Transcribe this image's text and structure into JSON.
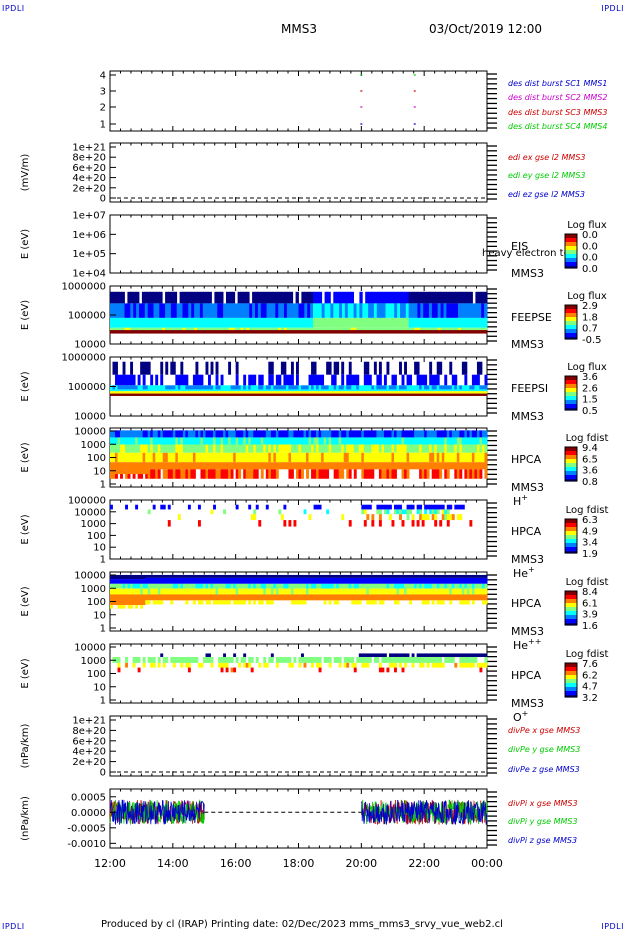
{
  "corners": {
    "tl": "IPDLI",
    "tr": "IPDLI",
    "bl": "IPDLI",
    "br": "IPDLI"
  },
  "header": {
    "spacecraft": "MMS3",
    "datetime": "03/Oct/2019 12:00"
  },
  "footer": {
    "text": "Produced by cl (IRAP)   Printing date: 02/Dec/2023   mms_mms3_srvy_vue_web2.cl"
  },
  "colors": {
    "red": "#cc0000",
    "green": "#00cc00",
    "blue": "#0000cc",
    "magenta": "#cc00cc",
    "spectrogram_scale": [
      "#000080",
      "#0000ff",
      "#0080ff",
      "#00ffff",
      "#80ff80",
      "#ffff00",
      "#ff8000",
      "#ff0000",
      "#800000"
    ]
  },
  "time_axis": {
    "tick_labels": [
      "12:00",
      "14:00",
      "16:00",
      "18:00",
      "20:00",
      "22:00",
      "00:00"
    ],
    "range_hours": [
      12,
      24
    ]
  },
  "chart_data": [
    {
      "type": "scatter",
      "ytick_labels": [
        "4",
        "3",
        "2",
        "1"
      ],
      "series": [
        {
          "name": "des dist burst SC1 MMS1",
          "color": "#0000cc",
          "y": 1,
          "x_hours": [
            20.0,
            21.7
          ]
        },
        {
          "name": "des dist burst SC2 MMS2",
          "color": "#cc00cc",
          "y": 2,
          "x_hours": [
            20.0,
            21.7
          ]
        },
        {
          "name": "des dist burst SC3 MMS3",
          "color": "#cc0000",
          "y": 3,
          "x_hours": [
            20.0,
            21.7
          ]
        },
        {
          "name": "des dist burst SC4 MMS4",
          "color": "#00cc00",
          "y": 4,
          "x_hours": [
            20.0,
            21.7
          ]
        }
      ]
    },
    {
      "type": "line",
      "ylabel": "(mV/m)",
      "ytick_labels": [
        "1e+21",
        "8e+20",
        "6e+20",
        "4e+20",
        "2e+20",
        "0"
      ],
      "series": [
        {
          "name": "edi ex gse l2 MMS3",
          "color": "#cc0000"
        },
        {
          "name": "edi ey gse l2 MMS3",
          "color": "#00cc00"
        },
        {
          "name": "edi ez gse l2 MMS3",
          "color": "#0000cc"
        }
      ]
    },
    {
      "type": "heatmap",
      "ylabel": "E (eV)",
      "ytick_labels": [
        "1e+07",
        "1e+06",
        "1e+05",
        "1e+04"
      ],
      "instrument": "EIS",
      "spacecraft": "MMS3",
      "overlay_text": "heavy electron to",
      "colorbar": {
        "label": "Log flux",
        "ticks": [
          "0.0",
          "0.0",
          "0.0",
          "0.0"
        ]
      }
    },
    {
      "type": "heatmap",
      "ylabel": "E (eV)",
      "ytick_labels": [
        "1000000",
        "100000",
        "10000"
      ],
      "instrument": "FEEPSE",
      "spacecraft": "MMS3",
      "colorbar": {
        "label": "Log flux",
        "ticks": [
          "2.9",
          "1.8",
          "0.7",
          "-0.5"
        ]
      }
    },
    {
      "type": "heatmap",
      "ylabel": "E (eV)",
      "ytick_labels": [
        "1000000",
        "100000",
        "10000"
      ],
      "instrument": "FEEPSI",
      "spacecraft": "MMS3",
      "colorbar": {
        "label": "Log flux",
        "ticks": [
          "3.6",
          "2.6",
          "1.5",
          "0.5"
        ]
      }
    },
    {
      "type": "heatmap",
      "ylabel": "E (eV)",
      "ytick_labels": [
        "10000",
        "1000",
        "100",
        "10",
        "1"
      ],
      "instrument": "HPCA",
      "spacecraft": "MMS3",
      "species": "H",
      "species_charge": "+",
      "colorbar": {
        "label": "Log fdist",
        "ticks": [
          "9.4",
          "6.5",
          "3.6",
          "0.8"
        ]
      }
    },
    {
      "type": "heatmap",
      "ylabel": "E (eV)",
      "ytick_labels": [
        "100000",
        "10000",
        "1000",
        "100",
        "10",
        "1"
      ],
      "instrument": "HPCA",
      "spacecraft": "MMS3",
      "species": "He",
      "species_charge": "+",
      "colorbar": {
        "label": "Log fdist",
        "ticks": [
          "6.3",
          "4.9",
          "3.4",
          "1.9"
        ]
      }
    },
    {
      "type": "heatmap",
      "ylabel": "E (eV)",
      "ytick_labels": [
        "10000",
        "1000",
        "100",
        "10",
        "1"
      ],
      "instrument": "HPCA",
      "spacecraft": "MMS3",
      "species": "He",
      "species_charge": "++",
      "colorbar": {
        "label": "Log fdist",
        "ticks": [
          "8.4",
          "6.1",
          "3.9",
          "1.6"
        ]
      }
    },
    {
      "type": "heatmap",
      "ylabel": "E (eV)",
      "ytick_labels": [
        "10000",
        "1000",
        "100",
        "10",
        "1"
      ],
      "instrument": "HPCA",
      "spacecraft": "MMS3",
      "species": "O",
      "species_charge": "+",
      "colorbar": {
        "label": "Log fdist",
        "ticks": [
          "7.6",
          "6.2",
          "4.7",
          "3.2"
        ]
      }
    },
    {
      "type": "line",
      "ylabel": "(nPa/km)",
      "ytick_labels": [
        "1e+21",
        "8e+20",
        "6e+20",
        "4e+20",
        "2e+20",
        "0"
      ],
      "series": [
        {
          "name": "divPe x gse MMS3",
          "color": "#cc0000"
        },
        {
          "name": "divPe y gse MMS3",
          "color": "#00cc00"
        },
        {
          "name": "divPe z gse MMS3",
          "color": "#0000cc"
        }
      ]
    },
    {
      "type": "line",
      "ylabel": "(nPa/km)",
      "ytick_labels": [
        "0.0005",
        "0.0000",
        "-0.0005",
        "-0.0010"
      ],
      "ylim": [
        -0.00115,
        0.00075
      ],
      "series": [
        {
          "name": "divPi x gse MMS3",
          "color": "#cc0000"
        },
        {
          "name": "divPi y gse MMS3",
          "color": "#00cc00"
        },
        {
          "name": "divPi z gse MMS3",
          "color": "#0000cc"
        }
      ],
      "data_intervals_hours": [
        [
          12.0,
          15.0
        ],
        [
          20.0,
          24.0
        ]
      ],
      "noise_amplitude": 0.0004
    }
  ]
}
